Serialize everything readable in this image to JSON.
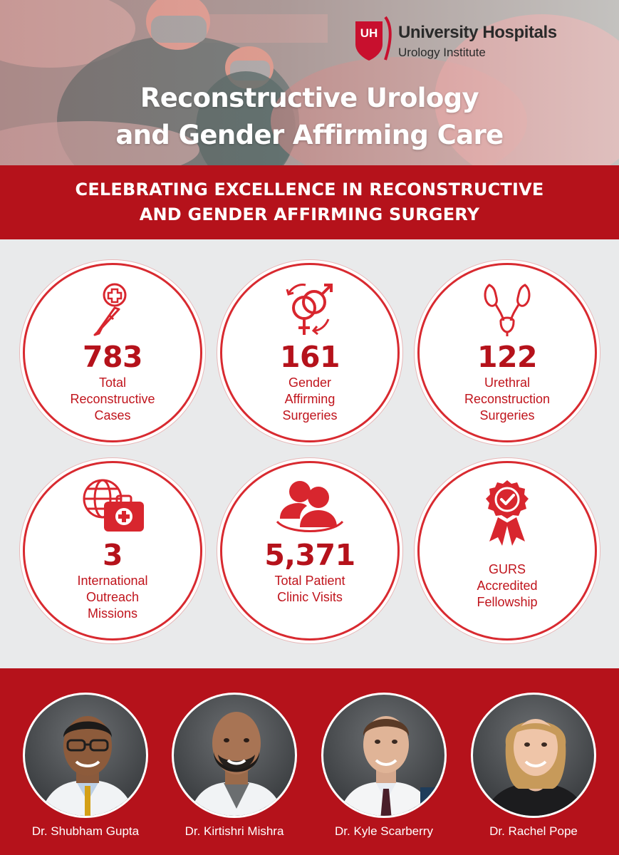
{
  "header": {
    "logo_mark": "UH",
    "logo_title": "University Hospitals",
    "logo_subtitle": "Urology Institute",
    "title_line1": "Reconstructive Urology",
    "title_line2": "and Gender Affirming Care"
  },
  "banner": {
    "line1": "CELEBRATING EXCELLENCE IN RECONSTRUCTIVE",
    "line2": "AND GENDER AFFIRMING SURGERY"
  },
  "stats": [
    {
      "icon": "scalpel-medical-cross-icon",
      "value": "783",
      "label": "Total\nReconstructive\nCases"
    },
    {
      "icon": "gender-symbols-icon",
      "value": "161",
      "label": "Gender\nAffirming\nSurgeries"
    },
    {
      "icon": "urinary-tract-icon",
      "value": "122",
      "label": "Urethral\nReconstruction\nSurgeries"
    },
    {
      "icon": "globe-medical-kit-icon",
      "value": "3",
      "label": "International\nOutreach\nMissions"
    },
    {
      "icon": "patients-group-icon",
      "value": "5,371",
      "label": "Total Patient\nClinic Visits"
    },
    {
      "icon": "award-ribbon-icon",
      "value": "",
      "label": "GURS\nAccredited\nFellowship"
    }
  ],
  "team": [
    {
      "name": "Dr. Shubham Gupta"
    },
    {
      "name": "Dr. Kirtishri Mishra"
    },
    {
      "name": "Dr. Kyle Scarberry"
    },
    {
      "name": "Dr. Rachel Pope"
    }
  ],
  "colors": {
    "brand_red": "#b5121b",
    "accent_red": "#d82a30",
    "background_gray": "#e9eaeb",
    "white": "#ffffff"
  }
}
